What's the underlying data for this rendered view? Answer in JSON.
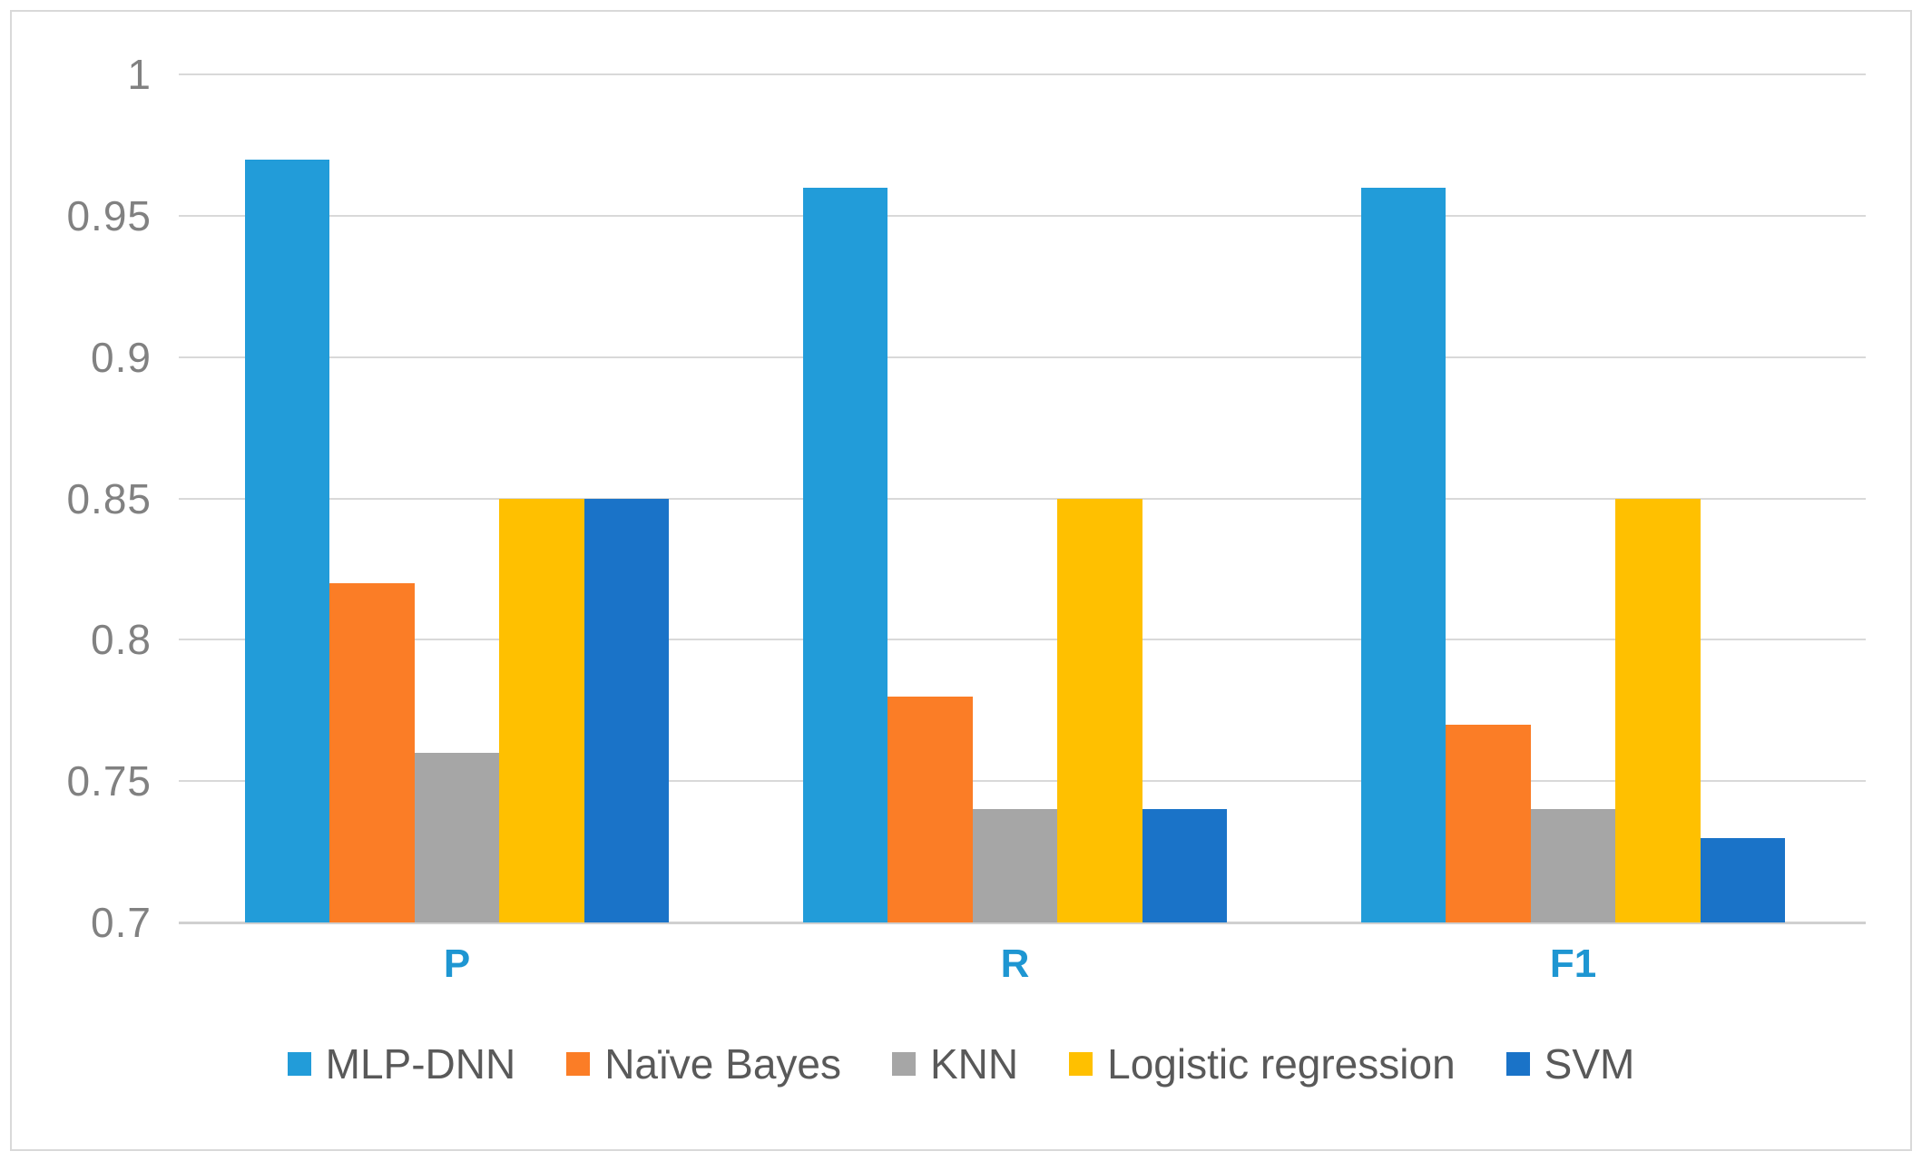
{
  "chart_data": {
    "type": "bar",
    "title": "",
    "xlabel": "",
    "ylabel": "",
    "categories": [
      "P",
      "R",
      "F1"
    ],
    "series": [
      {
        "name": "MLP-DNN",
        "color": "#229CD9",
        "values": [
          0.97,
          0.96,
          0.96
        ]
      },
      {
        "name": "Naïve Bayes",
        "color": "#FB7D26",
        "values": [
          0.82,
          0.78,
          0.77
        ]
      },
      {
        "name": "KNN",
        "color": "#A6A6A6",
        "values": [
          0.76,
          0.74,
          0.74
        ]
      },
      {
        "name": "Logistic regression",
        "color": "#FFC000",
        "values": [
          0.85,
          0.85,
          0.85
        ]
      },
      {
        "name": "SVM",
        "color": "#1A73C8",
        "values": [
          0.85,
          0.74,
          0.73
        ]
      }
    ],
    "ylim": [
      0.7,
      1.0
    ],
    "yticks": [
      1,
      0.95,
      0.9,
      0.85,
      0.8,
      0.75,
      0.7
    ],
    "ytick_labels": [
      "1",
      "0.95",
      "0.9",
      "0.85",
      "0.8",
      "0.75",
      "0.7"
    ],
    "grid": true,
    "legend_position": "bottom"
  },
  "styles": {
    "background": "#FFFFFF",
    "border_color": "#D9D9D9",
    "gridline_color": "#D9D9D9",
    "ytick_color": "#818181",
    "category_label_color": "#1E96D2",
    "legend_text_color": "#595959"
  }
}
